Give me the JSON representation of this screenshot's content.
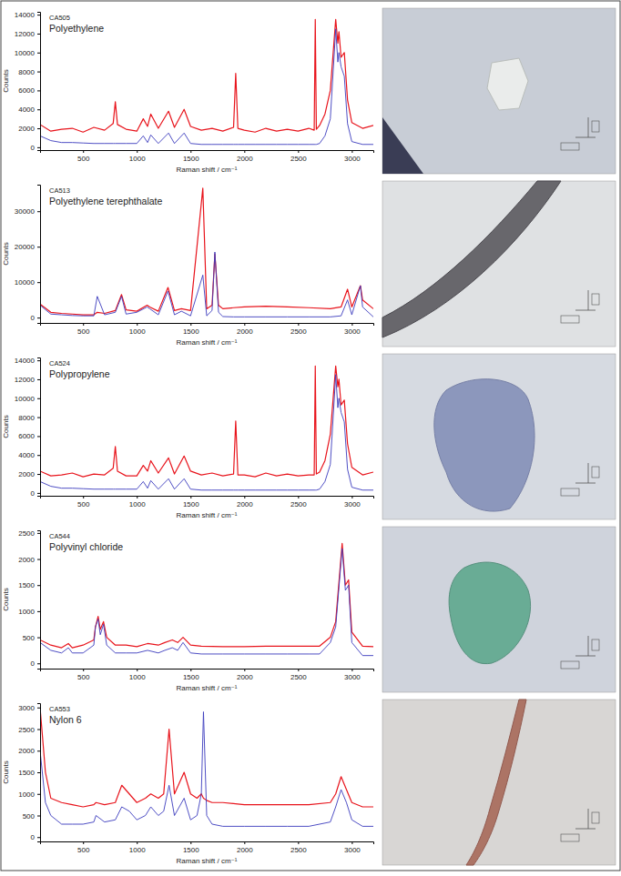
{
  "chart_data": [
    {
      "type": "line",
      "subtitle": "CA505",
      "title": "Polyethylene",
      "x_label": "Raman shift / cm⁻¹",
      "y_label": "Counts",
      "xlim": [
        100,
        3200
      ],
      "xticks": [
        500,
        1000,
        1500,
        2000,
        2500,
        3000
      ],
      "ylim": [
        -300,
        14300
      ],
      "yticks": [
        0,
        2000,
        4000,
        6000,
        8000,
        10000,
        12000,
        14000
      ],
      "x": [
        100,
        200,
        300,
        400,
        500,
        600,
        700,
        780,
        800,
        820,
        900,
        1000,
        1060,
        1100,
        1130,
        1200,
        1295,
        1350,
        1440,
        1500,
        1600,
        1700,
        1800,
        1900,
        1920,
        1940,
        2000,
        2100,
        2200,
        2300,
        2400,
        2500,
        2600,
        2650,
        2660,
        2670,
        2700,
        2750,
        2800,
        2850,
        2870,
        2880,
        2900,
        2930,
        2960,
        3000,
        3100,
        3200
      ],
      "series": [
        {
          "color": "#e8141c",
          "values": [
            2400,
            1700,
            1900,
            2000,
            1600,
            2100,
            1800,
            2500,
            4800,
            2400,
            1900,
            1700,
            3000,
            2200,
            3500,
            2000,
            3800,
            2100,
            4000,
            2200,
            1800,
            2000,
            1700,
            2100,
            7800,
            2000,
            1800,
            1600,
            2000,
            1700,
            1900,
            1700,
            2000,
            1800,
            13500,
            1900,
            2300,
            3500,
            6000,
            13500,
            11000,
            12200,
            9500,
            10000,
            5000,
            2600,
            2000,
            2300
          ]
        },
        {
          "color": "#3b3bbd",
          "values": [
            1200,
            700,
            500,
            500,
            450,
            400,
            400,
            400,
            400,
            400,
            400,
            400,
            1200,
            500,
            1300,
            400,
            1500,
            400,
            1500,
            400,
            300,
            300,
            300,
            300,
            300,
            300,
            300,
            300,
            300,
            300,
            300,
            300,
            300,
            300,
            300,
            300,
            400,
            1200,
            3000,
            12500,
            9000,
            10000,
            8500,
            7500,
            2500,
            600,
            300,
            300
          ]
        }
      ]
    },
    {
      "type": "line",
      "subtitle": "CA513",
      "title": "Polyethylene terephthalate",
      "x_label": "Raman shift / cm⁻¹",
      "y_label": "Counts",
      "xlim": [
        100,
        3200
      ],
      "xticks": [
        500,
        1000,
        1500,
        2000,
        2500,
        3000
      ],
      "ylim": [
        -1500,
        37500
      ],
      "yticks": [
        0,
        10000,
        20000,
        30000
      ],
      "x": [
        100,
        200,
        300,
        400,
        500,
        600,
        632,
        700,
        800,
        858,
        900,
        1000,
        1096,
        1120,
        1200,
        1290,
        1350,
        1415,
        1500,
        1614,
        1650,
        1700,
        1726,
        1760,
        1800,
        1900,
        2000,
        2200,
        2400,
        2600,
        2800,
        2900,
        2960,
        3000,
        3080,
        3100,
        3200
      ],
      "series": [
        {
          "color": "#e8141c",
          "values": [
            3800,
            1500,
            1200,
            1000,
            800,
            800,
            1500,
            1200,
            2000,
            6500,
            2200,
            1800,
            3500,
            3000,
            1800,
            8500,
            2000,
            2500,
            2000,
            36500,
            2500,
            3500,
            18000,
            3500,
            2500,
            2800,
            3000,
            3200,
            3000,
            2800,
            2500,
            3000,
            8000,
            3000,
            9000,
            5000,
            2500
          ]
        },
        {
          "color": "#3b3bbd",
          "values": [
            3500,
            1000,
            800,
            600,
            500,
            500,
            6000,
            800,
            1500,
            6000,
            1000,
            1500,
            3000,
            2500,
            800,
            7500,
            800,
            1800,
            500,
            12000,
            500,
            2000,
            18500,
            1500,
            300,
            200,
            200,
            200,
            200,
            200,
            200,
            500,
            5000,
            800,
            9000,
            3000,
            200
          ]
        }
      ]
    },
    {
      "type": "line",
      "subtitle": "CA524",
      "title": "Polypropylene",
      "x_label": "Raman shift / cm⁻¹",
      "y_label": "Counts",
      "xlim": [
        100,
        3200
      ],
      "xticks": [
        500,
        1000,
        1500,
        2000,
        2500,
        3000
      ],
      "ylim": [
        -300,
        14300
      ],
      "yticks": [
        0,
        2000,
        4000,
        6000,
        8000,
        10000,
        12000,
        14000
      ],
      "x": [
        100,
        200,
        300,
        400,
        500,
        600,
        700,
        780,
        800,
        820,
        900,
        1000,
        1060,
        1100,
        1130,
        1200,
        1295,
        1350,
        1440,
        1500,
        1600,
        1700,
        1800,
        1900,
        1920,
        1940,
        2000,
        2100,
        2200,
        2300,
        2400,
        2500,
        2600,
        2650,
        2660,
        2670,
        2700,
        2750,
        2800,
        2850,
        2870,
        2880,
        2900,
        2930,
        2960,
        3000,
        3100,
        3200
      ],
      "series": [
        {
          "color": "#e8141c",
          "values": [
            2300,
            1800,
            1900,
            2100,
            1700,
            2000,
            1900,
            2600,
            4900,
            2300,
            1800,
            1800,
            2900,
            2300,
            3400,
            2100,
            3700,
            2000,
            3900,
            2300,
            1900,
            2100,
            1800,
            2000,
            7600,
            1900,
            1900,
            1700,
            2100,
            1800,
            2000,
            1800,
            1900,
            1900,
            13400,
            2000,
            2200,
            3400,
            6200,
            13400,
            11200,
            12000,
            9300,
            9800,
            5200,
            2700,
            1900,
            2200
          ]
        },
        {
          "color": "#3b3bbd",
          "values": [
            1200,
            700,
            500,
            500,
            450,
            400,
            400,
            400,
            400,
            400,
            400,
            400,
            1200,
            500,
            1300,
            400,
            1500,
            400,
            1500,
            400,
            300,
            300,
            300,
            300,
            300,
            300,
            300,
            300,
            300,
            300,
            300,
            300,
            300,
            300,
            300,
            300,
            400,
            1200,
            3000,
            12500,
            9000,
            10000,
            8500,
            7500,
            2500,
            600,
            300,
            300
          ]
        }
      ]
    },
    {
      "type": "line",
      "subtitle": "CA544",
      "title": "Polyvinyl chloride",
      "x_label": "Raman shift / cm⁻¹",
      "y_label": "Counts",
      "xlim": [
        100,
        3200
      ],
      "xticks": [
        500,
        1000,
        1500,
        2000,
        2500,
        3000
      ],
      "ylim": [
        -100,
        2550
      ],
      "yticks": [
        0,
        500,
        1000,
        1500,
        2000,
        2500
      ],
      "x": [
        100,
        200,
        300,
        363,
        400,
        500,
        600,
        615,
        640,
        660,
        690,
        720,
        800,
        900,
        1000,
        1100,
        1200,
        1260,
        1330,
        1380,
        1430,
        1500,
        1600,
        1800,
        2000,
        2200,
        2400,
        2600,
        2700,
        2800,
        2850,
        2910,
        2940,
        2970,
        3000,
        3100,
        3200
      ],
      "series": [
        {
          "color": "#e8141c",
          "values": [
            450,
            350,
            300,
            380,
            300,
            350,
            450,
            700,
            900,
            650,
            800,
            500,
            350,
            350,
            320,
            380,
            350,
            400,
            450,
            400,
            500,
            350,
            330,
            320,
            320,
            330,
            330,
            330,
            330,
            500,
            800,
            2300,
            1500,
            1600,
            600,
            330,
            320
          ]
        },
        {
          "color": "#3b3bbd",
          "values": [
            400,
            250,
            200,
            300,
            200,
            200,
            350,
            700,
            850,
            550,
            750,
            350,
            200,
            200,
            200,
            250,
            200,
            250,
            300,
            250,
            400,
            200,
            180,
            180,
            180,
            180,
            180,
            180,
            180,
            400,
            700,
            2200,
            1400,
            1500,
            400,
            150,
            150
          ]
        }
      ]
    },
    {
      "type": "line",
      "subtitle": "CA553",
      "title": "Nylon 6",
      "x_label": "Raman shift / cm⁻¹",
      "y_label": "Counts",
      "xlim": [
        100,
        3200
      ],
      "xticks": [
        500,
        1000,
        1500,
        2000,
        2500,
        3000
      ],
      "ylim": [
        -100,
        3100
      ],
      "yticks": [
        0,
        500,
        1000,
        1500,
        2000,
        2500,
        3000
      ],
      "x": [
        100,
        150,
        200,
        300,
        400,
        500,
        600,
        620,
        700,
        800,
        860,
        930,
        1000,
        1080,
        1130,
        1200,
        1250,
        1300,
        1350,
        1440,
        1500,
        1560,
        1600,
        1620,
        1650,
        1700,
        1800,
        2000,
        2200,
        2400,
        2600,
        2800,
        2850,
        2900,
        2950,
        3000,
        3100,
        3200
      ],
      "series": [
        {
          "color": "#e8141c",
          "values": [
            3000,
            1500,
            900,
            800,
            750,
            700,
            750,
            800,
            750,
            800,
            1200,
            1000,
            800,
            900,
            1000,
            900,
            1000,
            2500,
            1000,
            1500,
            1000,
            900,
            1000,
            900,
            850,
            800,
            800,
            750,
            750,
            750,
            750,
            800,
            1000,
            1400,
            1100,
            800,
            700,
            700
          ]
        },
        {
          "color": "#3b3bbd",
          "values": [
            2000,
            800,
            500,
            300,
            300,
            300,
            350,
            500,
            350,
            400,
            700,
            600,
            400,
            500,
            700,
            500,
            600,
            1200,
            500,
            900,
            400,
            500,
            1000,
            2900,
            500,
            300,
            250,
            250,
            250,
            250,
            250,
            350,
            700,
            1100,
            800,
            400,
            250,
            250
          ]
        }
      ]
    }
  ]
}
